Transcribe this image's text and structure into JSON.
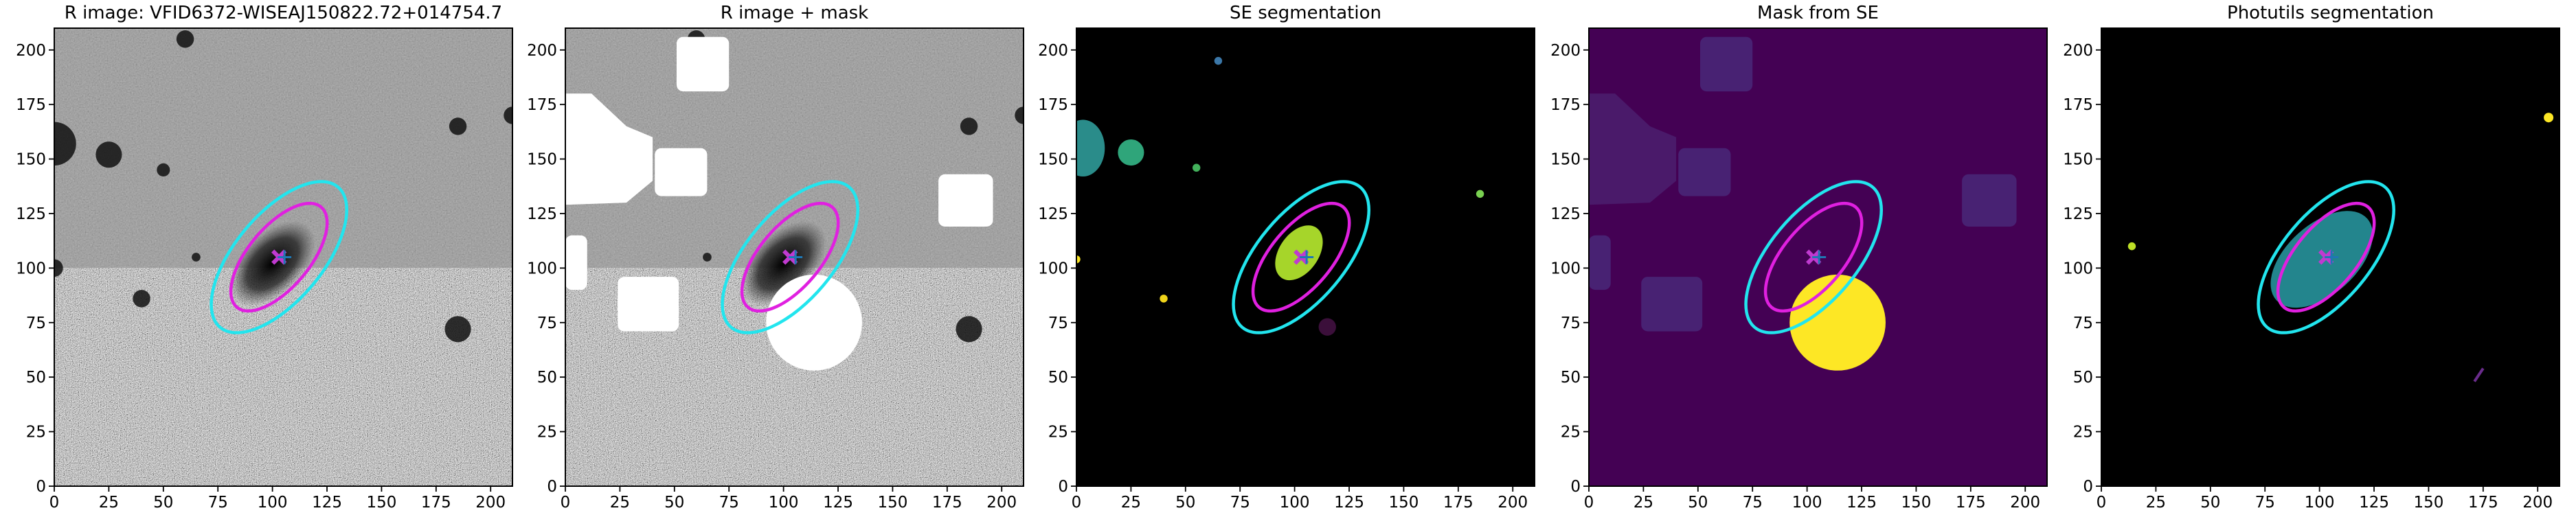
{
  "chart_data": [
    {
      "type": "image",
      "title": "R image: VFID6372-WISEAJ150822.72+014754.7",
      "xlim": [
        0,
        210
      ],
      "ylim": [
        0,
        210
      ],
      "xticks": [
        0,
        25,
        50,
        75,
        100,
        125,
        150,
        175,
        200
      ],
      "yticks": [
        0,
        25,
        50,
        75,
        100,
        125,
        150,
        175,
        200
      ]
    },
    {
      "type": "image",
      "title": "R image + mask",
      "xlim": [
        0,
        210
      ],
      "ylim": [
        0,
        210
      ],
      "xticks": [
        0,
        25,
        50,
        75,
        100,
        125,
        150,
        175,
        200
      ],
      "yticks": [
        0,
        25,
        50,
        75,
        100,
        125,
        150,
        175,
        200
      ]
    },
    {
      "type": "image",
      "title": "SE segmentation",
      "xlim": [
        0,
        210
      ],
      "ylim": [
        0,
        210
      ],
      "xticks": [
        0,
        25,
        50,
        75,
        100,
        125,
        150,
        175,
        200
      ],
      "yticks": [
        0,
        25,
        50,
        75,
        100,
        125,
        150,
        175,
        200
      ]
    },
    {
      "type": "image",
      "title": "Mask from SE",
      "xlim": [
        0,
        210
      ],
      "ylim": [
        0,
        210
      ],
      "xticks": [
        0,
        25,
        50,
        75,
        100,
        125,
        150,
        175,
        200
      ],
      "yticks": [
        0,
        25,
        50,
        75,
        100,
        125,
        150,
        175,
        200
      ]
    },
    {
      "type": "image",
      "title": "Photutils segmentation",
      "xlim": [
        0,
        210
      ],
      "ylim": [
        0,
        210
      ],
      "xticks": [
        0,
        25,
        50,
        75,
        100,
        125,
        150,
        175,
        200
      ],
      "yticks": [
        0,
        25,
        50,
        75,
        100,
        125,
        150,
        175,
        200
      ]
    }
  ]
}
